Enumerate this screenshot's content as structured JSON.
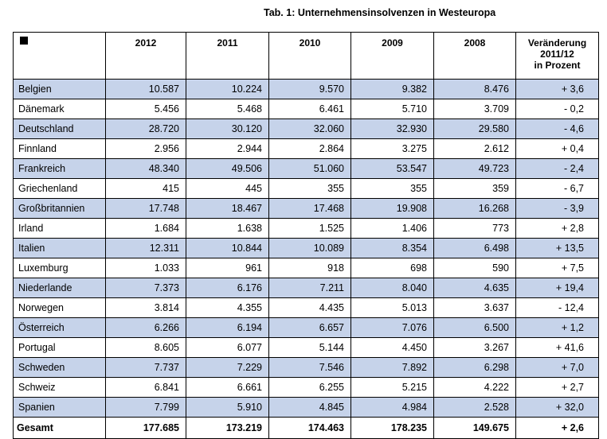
{
  "title": "Tab. 1:  Unternehmensinsolvenzen in Westeuropa",
  "header": {
    "corner_symbol": "black-square",
    "years": [
      "2012",
      "2011",
      "2010",
      "2009",
      "2008"
    ],
    "change_label": [
      "Veränderung",
      "2011/12",
      "in Prozent"
    ]
  },
  "rows": [
    {
      "country": "Belgien",
      "v2012": "10.587",
      "v2011": "10.224",
      "v2010": "9.570",
      "v2009": "9.382",
      "v2008": "8.476",
      "change": "+ 3,6"
    },
    {
      "country": "Dänemark",
      "v2012": "5.456",
      "v2011": "5.468",
      "v2010": "6.461",
      "v2009": "5.710",
      "v2008": "3.709",
      "change": "- 0,2"
    },
    {
      "country": "Deutschland",
      "v2012": "28.720",
      "v2011": "30.120",
      "v2010": "32.060",
      "v2009": "32.930",
      "v2008": "29.580",
      "change": "- 4,6"
    },
    {
      "country": "Finnland",
      "v2012": "2.956",
      "v2011": "2.944",
      "v2010": "2.864",
      "v2009": "3.275",
      "v2008": "2.612",
      "change": "+ 0,4"
    },
    {
      "country": "Frankreich",
      "v2012": "48.340",
      "v2011": "49.506",
      "v2010": "51.060",
      "v2009": "53.547",
      "v2008": "49.723",
      "change": "- 2,4"
    },
    {
      "country": "Griechenland",
      "v2012": "415",
      "v2011": "445",
      "v2010": "355",
      "v2009": "355",
      "v2008": "359",
      "change": "- 6,7"
    },
    {
      "country": "Großbritannien",
      "v2012": "17.748",
      "v2011": "18.467",
      "v2010": "17.468",
      "v2009": "19.908",
      "v2008": "16.268",
      "change": "- 3,9"
    },
    {
      "country": "Irland",
      "v2012": "1.684",
      "v2011": "1.638",
      "v2010": "1.525",
      "v2009": "1.406",
      "v2008": "773",
      "change": "+ 2,8"
    },
    {
      "country": "Italien",
      "v2012": "12.311",
      "v2011": "10.844",
      "v2010": "10.089",
      "v2009": "8.354",
      "v2008": "6.498",
      "change": "+ 13,5"
    },
    {
      "country": "Luxemburg",
      "v2012": "1.033",
      "v2011": "961",
      "v2010": "918",
      "v2009": "698",
      "v2008": "590",
      "change": "+ 7,5"
    },
    {
      "country": "Niederlande",
      "v2012": "7.373",
      "v2011": "6.176",
      "v2010": "7.211",
      "v2009": "8.040",
      "v2008": "4.635",
      "change": "+ 19,4"
    },
    {
      "country": "Norwegen",
      "v2012": "3.814",
      "v2011": "4.355",
      "v2010": "4.435",
      "v2009": "5.013",
      "v2008": "3.637",
      "change": "- 12,4"
    },
    {
      "country": "Österreich",
      "v2012": "6.266",
      "v2011": "6.194",
      "v2010": "6.657",
      "v2009": "7.076",
      "v2008": "6.500",
      "change": "+ 1,2"
    },
    {
      "country": "Portugal",
      "v2012": "8.605",
      "v2011": "6.077",
      "v2010": "5.144",
      "v2009": "4.450",
      "v2008": "3.267",
      "change": "+ 41,6"
    },
    {
      "country": "Schweden",
      "v2012": "7.737",
      "v2011": "7.229",
      "v2010": "7.546",
      "v2009": "7.892",
      "v2008": "6.298",
      "change": "+ 7,0"
    },
    {
      "country": "Schweiz",
      "v2012": "6.841",
      "v2011": "6.661",
      "v2010": "6.255",
      "v2009": "5.215",
      "v2008": "4.222",
      "change": "+ 2,7"
    },
    {
      "country": "Spanien",
      "v2012": "7.799",
      "v2011": "5.910",
      "v2010": "4.845",
      "v2009": "4.984",
      "v2008": "2.528",
      "change": "+ 32,0"
    }
  ],
  "total": {
    "country": "Gesamt",
    "v2012": "177.685",
    "v2011": "173.219",
    "v2010": "174.463",
    "v2009": "178.235",
    "v2008": "149.675",
    "change": "+ 2,6"
  },
  "colors": {
    "shaded_row": "#c6d3ea",
    "border": "#000000"
  }
}
